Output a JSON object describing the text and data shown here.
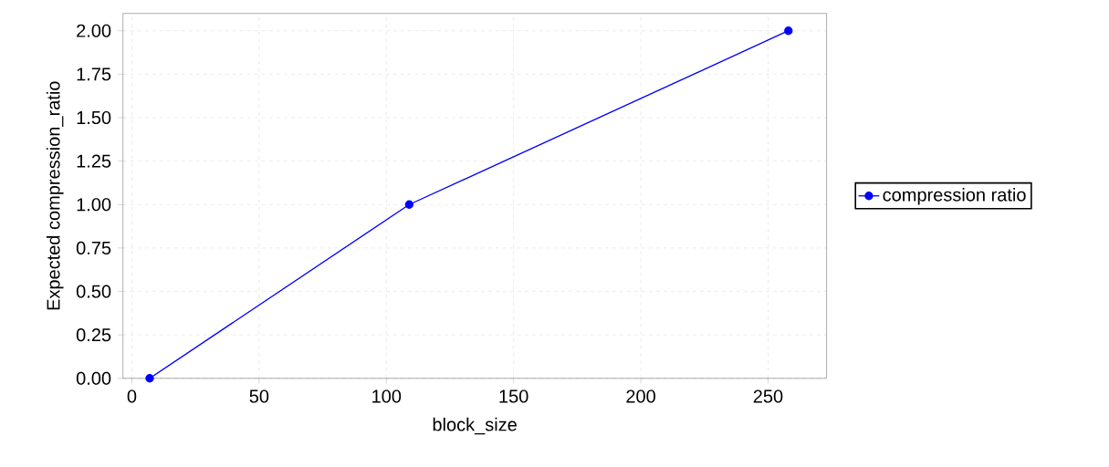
{
  "chart_data": {
    "type": "line",
    "xlabel": "block_size",
    "ylabel": "Expected compression_ratio",
    "x": [
      7,
      109,
      258
    ],
    "series": [
      {
        "name": "compression ratio",
        "color": "#0000ff",
        "values": [
          0.0,
          1.0,
          2.0
        ]
      }
    ],
    "xlim": [
      -3.5,
      273
    ],
    "ylim": [
      0,
      2.1
    ],
    "xticks": [
      0,
      50,
      100,
      150,
      200,
      250
    ],
    "yticks": [
      {
        "value": 0,
        "label": "0.00"
      },
      {
        "value": 0.25,
        "label": "0.25"
      },
      {
        "value": 0.5,
        "label": "0.50"
      },
      {
        "value": 0.75,
        "label": "0.75"
      },
      {
        "value": 1,
        "label": "1.00"
      },
      {
        "value": 1.25,
        "label": "1.25"
      },
      {
        "value": 1.5,
        "label": "1.50"
      },
      {
        "value": 1.75,
        "label": "1.75"
      },
      {
        "value": 2,
        "label": "2.00"
      }
    ],
    "grid": true,
    "legend": "right",
    "marker": "circle",
    "line_style": "solid"
  }
}
